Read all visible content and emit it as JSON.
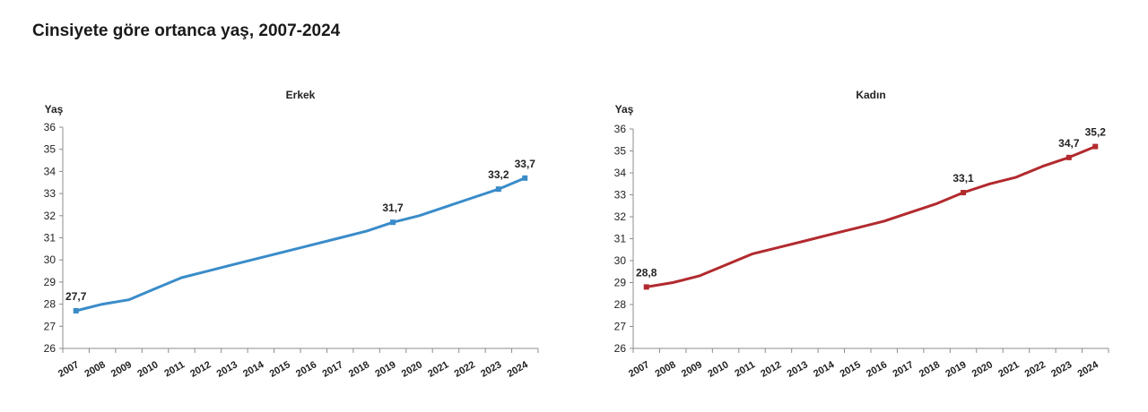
{
  "title": "Cinsiyete göre ortanca yaş, 2007-2024",
  "chart_data": [
    {
      "type": "line",
      "title": "Erkek",
      "ylabel": "Yaş",
      "color": "#3a8cc9",
      "ylim": [
        26,
        36
      ],
      "yticks": [
        26,
        27,
        28,
        29,
        30,
        31,
        32,
        33,
        34,
        35,
        36
      ],
      "categories": [
        "2007",
        "2008",
        "2009",
        "2010",
        "2011",
        "2012",
        "2013",
        "2014",
        "2015",
        "2016",
        "2017",
        "2018",
        "2019",
        "2020",
        "2021",
        "2022",
        "2023",
        "2024"
      ],
      "values": [
        27.7,
        28.0,
        28.2,
        28.7,
        29.2,
        29.5,
        29.8,
        30.1,
        30.4,
        30.7,
        31.0,
        31.3,
        31.7,
        32.0,
        32.4,
        32.8,
        33.2,
        33.7
      ],
      "labels": [
        {
          "index": 0,
          "text": "27,7"
        },
        {
          "index": 12,
          "text": "31,7"
        },
        {
          "index": 16,
          "text": "33,2"
        },
        {
          "index": 17,
          "text": "33,7"
        }
      ]
    },
    {
      "type": "line",
      "title": "Kadın",
      "ylabel": "Yaş",
      "color": "#b22a2e",
      "ylim": [
        26,
        36
      ],
      "yticks": [
        26,
        27,
        28,
        29,
        30,
        31,
        32,
        33,
        34,
        35,
        36
      ],
      "categories": [
        "2007",
        "2008",
        "2009",
        "2010",
        "2011",
        "2012",
        "2013",
        "2014",
        "2015",
        "2016",
        "2017",
        "2018",
        "2019",
        "2020",
        "2021",
        "2022",
        "2023",
        "2024"
      ],
      "values": [
        28.8,
        29.0,
        29.3,
        29.8,
        30.3,
        30.6,
        30.9,
        31.2,
        31.5,
        31.8,
        32.2,
        32.6,
        33.1,
        33.5,
        33.8,
        34.3,
        34.7,
        35.2
      ],
      "labels": [
        {
          "index": 0,
          "text": "28,8"
        },
        {
          "index": 12,
          "text": "33,1"
        },
        {
          "index": 16,
          "text": "34,7"
        },
        {
          "index": 17,
          "text": "35,2"
        }
      ]
    }
  ]
}
